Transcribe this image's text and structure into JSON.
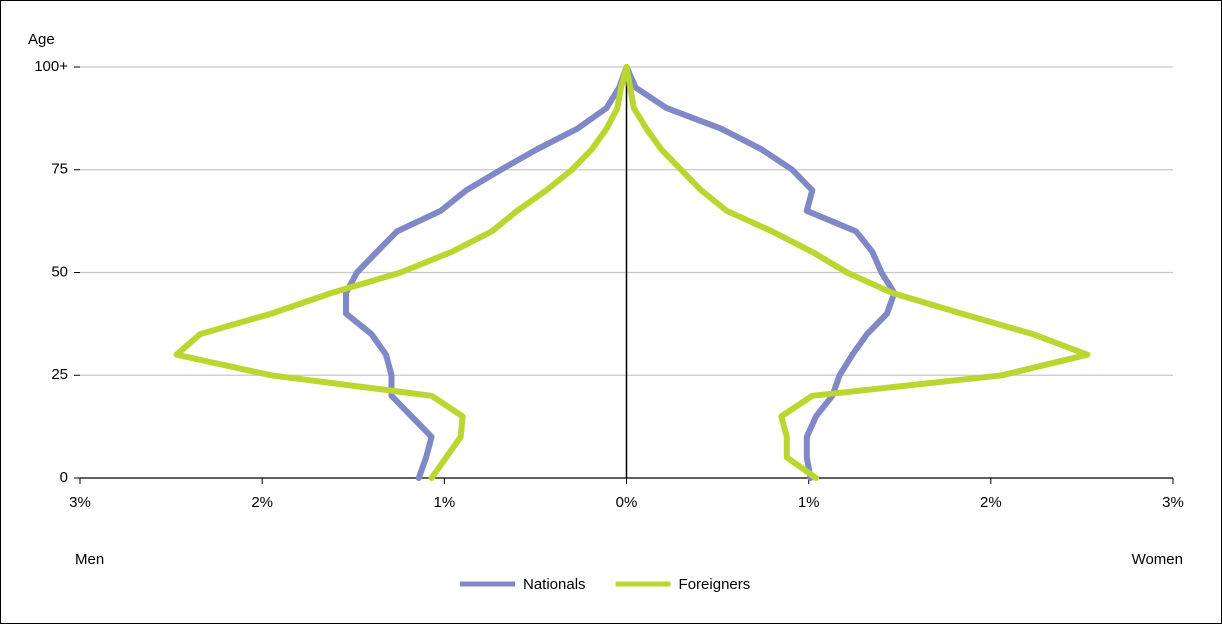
{
  "chart_data": {
    "type": "line",
    "y_label": "Age",
    "left_label": "Men",
    "right_label": "Women",
    "y": [
      0,
      5,
      10,
      15,
      20,
      25,
      30,
      35,
      40,
      45,
      50,
      55,
      60,
      65,
      70,
      75,
      80,
      85,
      90,
      95,
      100
    ],
    "ylim": [
      0,
      100
    ],
    "yticks": [
      0,
      25,
      50,
      75,
      {
        "value": 100,
        "label": "100+"
      }
    ],
    "xlim": [
      -3,
      3
    ],
    "xticks": [
      {
        "value": -3,
        "label": "3%"
      },
      {
        "value": -2,
        "label": "2%"
      },
      {
        "value": -1,
        "label": "1%"
      },
      {
        "value": 0,
        "label": "0%"
      },
      {
        "value": 1,
        "label": "1%"
      },
      {
        "value": 2,
        "label": "2%"
      },
      {
        "value": 3,
        "label": "3%"
      }
    ],
    "grid": true,
    "legend": "bottom",
    "series": [
      {
        "name": "Nationals",
        "color": "#8088c8",
        "men": [
          -1.14,
          -1.1,
          -1.07,
          -1.18,
          -1.29,
          -1.29,
          -1.32,
          -1.4,
          -1.54,
          -1.54,
          -1.48,
          -1.37,
          -1.26,
          -1.02,
          -0.88,
          -0.69,
          -0.49,
          -0.27,
          -0.11,
          -0.04,
          0
        ],
        "women": [
          1.01,
          0.99,
          0.99,
          1.04,
          1.13,
          1.17,
          1.24,
          1.32,
          1.43,
          1.47,
          1.4,
          1.35,
          1.26,
          0.99,
          1.02,
          0.91,
          0.74,
          0.52,
          0.22,
          0.05,
          0
        ]
      },
      {
        "name": "Foreigners",
        "color": "#bcd630",
        "men": [
          -1.07,
          -0.99,
          -0.91,
          -0.9,
          -1.07,
          -1.95,
          -2.47,
          -2.34,
          -1.95,
          -1.62,
          -1.24,
          -0.96,
          -0.74,
          -0.6,
          -0.44,
          -0.3,
          -0.19,
          -0.11,
          -0.05,
          -0.03,
          0
        ],
        "women": [
          1.04,
          0.88,
          0.88,
          0.85,
          1.02,
          2.06,
          2.53,
          2.23,
          1.84,
          1.46,
          1.21,
          1.02,
          0.8,
          0.55,
          0.41,
          0.3,
          0.19,
          0.11,
          0.04,
          0.02,
          0
        ]
      }
    ]
  }
}
